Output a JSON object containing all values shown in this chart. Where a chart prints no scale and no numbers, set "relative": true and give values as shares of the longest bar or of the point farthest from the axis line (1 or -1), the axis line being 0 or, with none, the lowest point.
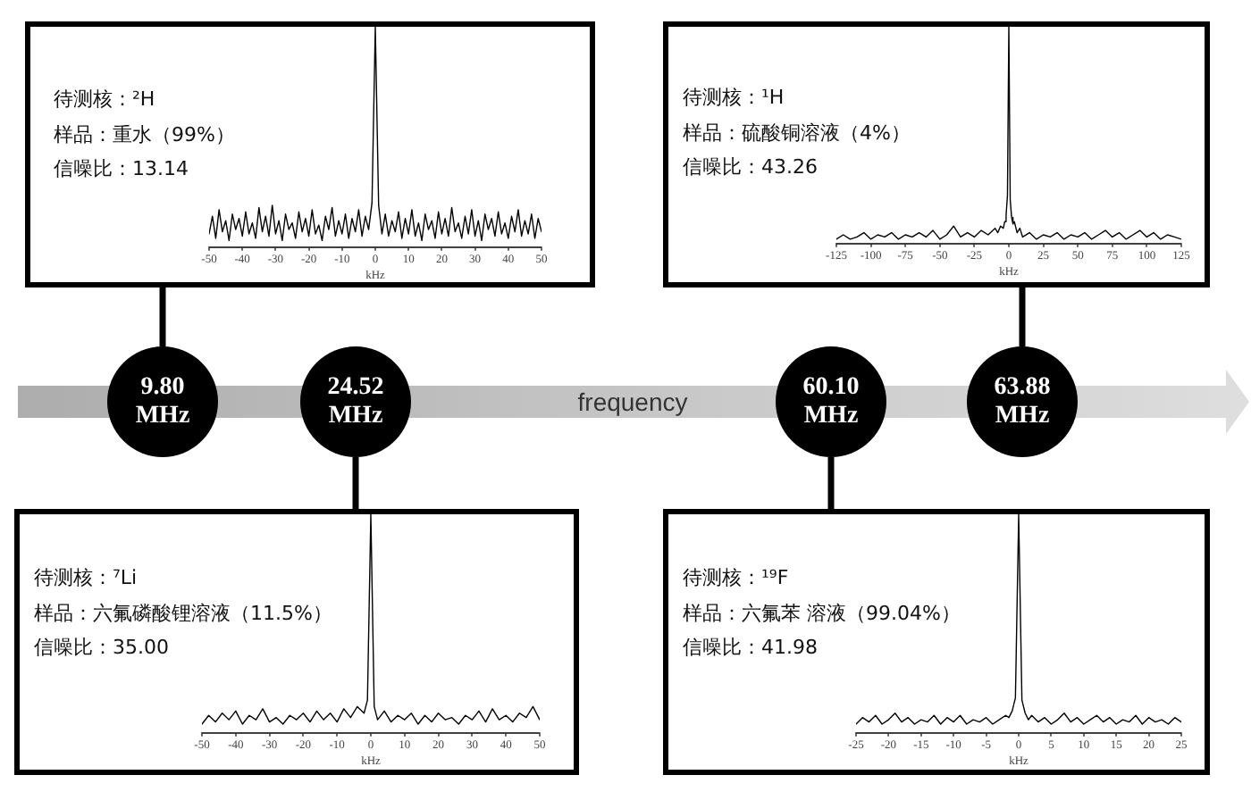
{
  "chart_data": [
    {
      "type": "line",
      "relative": true,
      "color": "#000000",
      "xlabel": "kHz",
      "annotations": [
        "待测核：²H",
        "样品：重水（99%）",
        "信噪比：13.14"
      ],
      "xlim": [
        -50,
        50
      ],
      "xticks": [
        -50,
        -40,
        -30,
        -20,
        -10,
        0,
        10,
        20,
        30,
        40,
        50
      ],
      "x": [
        -50,
        -49,
        -48,
        -47,
        -46,
        -45,
        -44,
        -43,
        -42,
        -41,
        -40,
        -39,
        -38,
        -37,
        -36,
        -35,
        -34,
        -33,
        -32,
        -31,
        -30,
        -29,
        -28,
        -27,
        -26,
        -25,
        -24,
        -23,
        -22,
        -21,
        -20,
        -19,
        -18,
        -17,
        -16,
        -15,
        -14,
        -13,
        -12,
        -11,
        -10,
        -9,
        -8,
        -7,
        -6,
        -5,
        -4,
        -3,
        -2,
        -1,
        0,
        1,
        2,
        3,
        4,
        5,
        6,
        7,
        8,
        9,
        10,
        11,
        12,
        13,
        14,
        15,
        16,
        17,
        18,
        19,
        20,
        21,
        22,
        23,
        24,
        25,
        26,
        27,
        28,
        29,
        30,
        31,
        32,
        33,
        34,
        35,
        36,
        37,
        38,
        39,
        40,
        41,
        42,
        43,
        44,
        45,
        46,
        47,
        48,
        49,
        50
      ],
      "values": [
        0.06,
        0.14,
        0.04,
        0.17,
        0.07,
        0.12,
        0.03,
        0.15,
        0.08,
        0.13,
        0.05,
        0.16,
        0.06,
        0.11,
        0.04,
        0.18,
        0.07,
        0.14,
        0.05,
        0.19,
        0.06,
        0.12,
        0.03,
        0.15,
        0.08,
        0.11,
        0.04,
        0.16,
        0.07,
        0.13,
        0.05,
        0.17,
        0.06,
        0.1,
        0.03,
        0.14,
        0.08,
        0.18,
        0.05,
        0.12,
        0.06,
        0.15,
        0.04,
        0.13,
        0.07,
        0.17,
        0.05,
        0.14,
        0.08,
        0.2,
        1,
        0.19,
        0.06,
        0.15,
        0.05,
        0.12,
        0.07,
        0.16,
        0.04,
        0.13,
        0.06,
        0.17,
        0.05,
        0.11,
        0.03,
        0.15,
        0.08,
        0.12,
        0.04,
        0.16,
        0.06,
        0.13,
        0.05,
        0.18,
        0.07,
        0.11,
        0.04,
        0.14,
        0.06,
        0.17,
        0.05,
        0.12,
        0.03,
        0.15,
        0.08,
        0.13,
        0.05,
        0.16,
        0.06,
        0.11,
        0.04,
        0.14,
        0.07,
        0.17,
        0.05,
        0.12,
        0.06,
        0.15,
        0.04,
        0.13,
        0.07
      ]
    },
    {
      "type": "line",
      "relative": true,
      "color": "#000000",
      "xlabel": "kHz",
      "annotations": [
        "待测核：¹H",
        "样品：硫酸铜溶液（4%）",
        "信噪比：43.26"
      ],
      "xlim": [
        -125,
        125
      ],
      "xticks": [
        -125,
        -100,
        -75,
        -50,
        -25,
        0,
        25,
        50,
        75,
        100,
        125
      ],
      "x": [
        -125,
        -120,
        -115,
        -110,
        -105,
        -100,
        -95,
        -90,
        -85,
        -80,
        -75,
        -70,
        -65,
        -60,
        -55,
        -50,
        -45,
        -40,
        -35,
        -30,
        -25,
        -20,
        -15,
        -10,
        -8,
        -6,
        -4,
        -3,
        -2,
        -1,
        0,
        1,
        2,
        3,
        4,
        6,
        8,
        10,
        15,
        20,
        25,
        30,
        35,
        40,
        45,
        50,
        55,
        60,
        65,
        70,
        75,
        80,
        85,
        90,
        95,
        100,
        105,
        110,
        115,
        120,
        125
      ],
      "values": [
        0.02,
        0.04,
        0.02,
        0.03,
        0.05,
        0.02,
        0.04,
        0.03,
        0.05,
        0.02,
        0.04,
        0.03,
        0.05,
        0.03,
        0.06,
        0.02,
        0.04,
        0.08,
        0.03,
        0.05,
        0.03,
        0.06,
        0.04,
        0.07,
        0.05,
        0.08,
        0.07,
        0.1,
        0.13,
        0.22,
        1,
        0.2,
        0.12,
        0.09,
        0.1,
        0.05,
        0.07,
        0.03,
        0.05,
        0.02,
        0.04,
        0.03,
        0.05,
        0.02,
        0.04,
        0.03,
        0.05,
        0.02,
        0.04,
        0.06,
        0.03,
        0.05,
        0.02,
        0.04,
        0.06,
        0.03,
        0.05,
        0.02,
        0.04,
        0.03,
        0.02
      ]
    },
    {
      "type": "other",
      "xlabel": "frequency",
      "categories": [
        "9.80 MHz",
        "24.52 MHz",
        "60.10 MHz",
        "63.88 MHz"
      ]
    },
    {
      "type": "line",
      "relative": true,
      "color": "#000000",
      "xlabel": "kHz",
      "annotations": [
        "待测核：⁷Li",
        "样品：六氟磷酸锂溶液（11.5%）",
        "信噪比：35.00"
      ],
      "xlim": [
        -50,
        50
      ],
      "xticks": [
        -50,
        -40,
        -30,
        -20,
        -10,
        0,
        10,
        20,
        30,
        40,
        50
      ],
      "x": [
        -50,
        -48,
        -46,
        -44,
        -42,
        -40,
        -38,
        -36,
        -34,
        -32,
        -30,
        -28,
        -26,
        -24,
        -22,
        -20,
        -18,
        -16,
        -14,
        -12,
        -10,
        -8,
        -6,
        -4,
        -2,
        -1,
        0,
        1,
        2,
        4,
        6,
        8,
        10,
        12,
        14,
        16,
        18,
        20,
        22,
        24,
        26,
        28,
        30,
        32,
        34,
        36,
        38,
        40,
        42,
        44,
        46,
        48,
        50
      ],
      "values": [
        0.04,
        0.08,
        0.05,
        0.09,
        0.06,
        0.1,
        0.04,
        0.08,
        0.06,
        0.11,
        0.05,
        0.07,
        0.04,
        0.08,
        0.06,
        0.09,
        0.05,
        0.1,
        0.06,
        0.09,
        0.05,
        0.11,
        0.07,
        0.12,
        0.09,
        0.15,
        1,
        0.12,
        0.06,
        0.1,
        0.05,
        0.08,
        0.06,
        0.09,
        0.04,
        0.08,
        0.05,
        0.09,
        0.06,
        0.07,
        0.04,
        0.08,
        0.06,
        0.1,
        0.05,
        0.11,
        0.06,
        0.08,
        0.05,
        0.09,
        0.07,
        0.12,
        0.06
      ]
    },
    {
      "type": "line",
      "relative": true,
      "color": "#000000",
      "xlabel": "kHz",
      "annotations": [
        "待测核：¹⁹F",
        "样品：六氟苯 溶液（99.04%）",
        "信噪比：41.98"
      ],
      "xlim": [
        -25,
        25
      ],
      "xticks": [
        -25,
        -20,
        -15,
        -10,
        -5,
        0,
        5,
        10,
        15,
        20,
        25
      ],
      "x": [
        -25,
        -24,
        -23,
        -22,
        -21,
        -20,
        -19,
        -18,
        -17,
        -16,
        -15,
        -14,
        -13,
        -12,
        -11,
        -10,
        -9,
        -8,
        -7,
        -6,
        -5,
        -4,
        -3,
        -2,
        -1.5,
        -1,
        -0.5,
        0,
        0.5,
        1,
        1.5,
        2,
        3,
        4,
        5,
        6,
        7,
        8,
        9,
        10,
        11,
        12,
        13,
        14,
        15,
        16,
        17,
        18,
        19,
        20,
        21,
        22,
        23,
        24,
        25
      ],
      "values": [
        0.04,
        0.07,
        0.05,
        0.08,
        0.04,
        0.06,
        0.09,
        0.05,
        0.07,
        0.04,
        0.06,
        0.05,
        0.08,
        0.04,
        0.07,
        0.05,
        0.08,
        0.04,
        0.06,
        0.05,
        0.07,
        0.04,
        0.06,
        0.08,
        0.07,
        0.1,
        0.16,
        1,
        0.15,
        0.09,
        0.06,
        0.08,
        0.05,
        0.07,
        0.04,
        0.06,
        0.09,
        0.05,
        0.07,
        0.04,
        0.06,
        0.08,
        0.05,
        0.07,
        0.04,
        0.06,
        0.05,
        0.08,
        0.04,
        0.07,
        0.05,
        0.06,
        0.04,
        0.07,
        0.05
      ]
    }
  ]
}
